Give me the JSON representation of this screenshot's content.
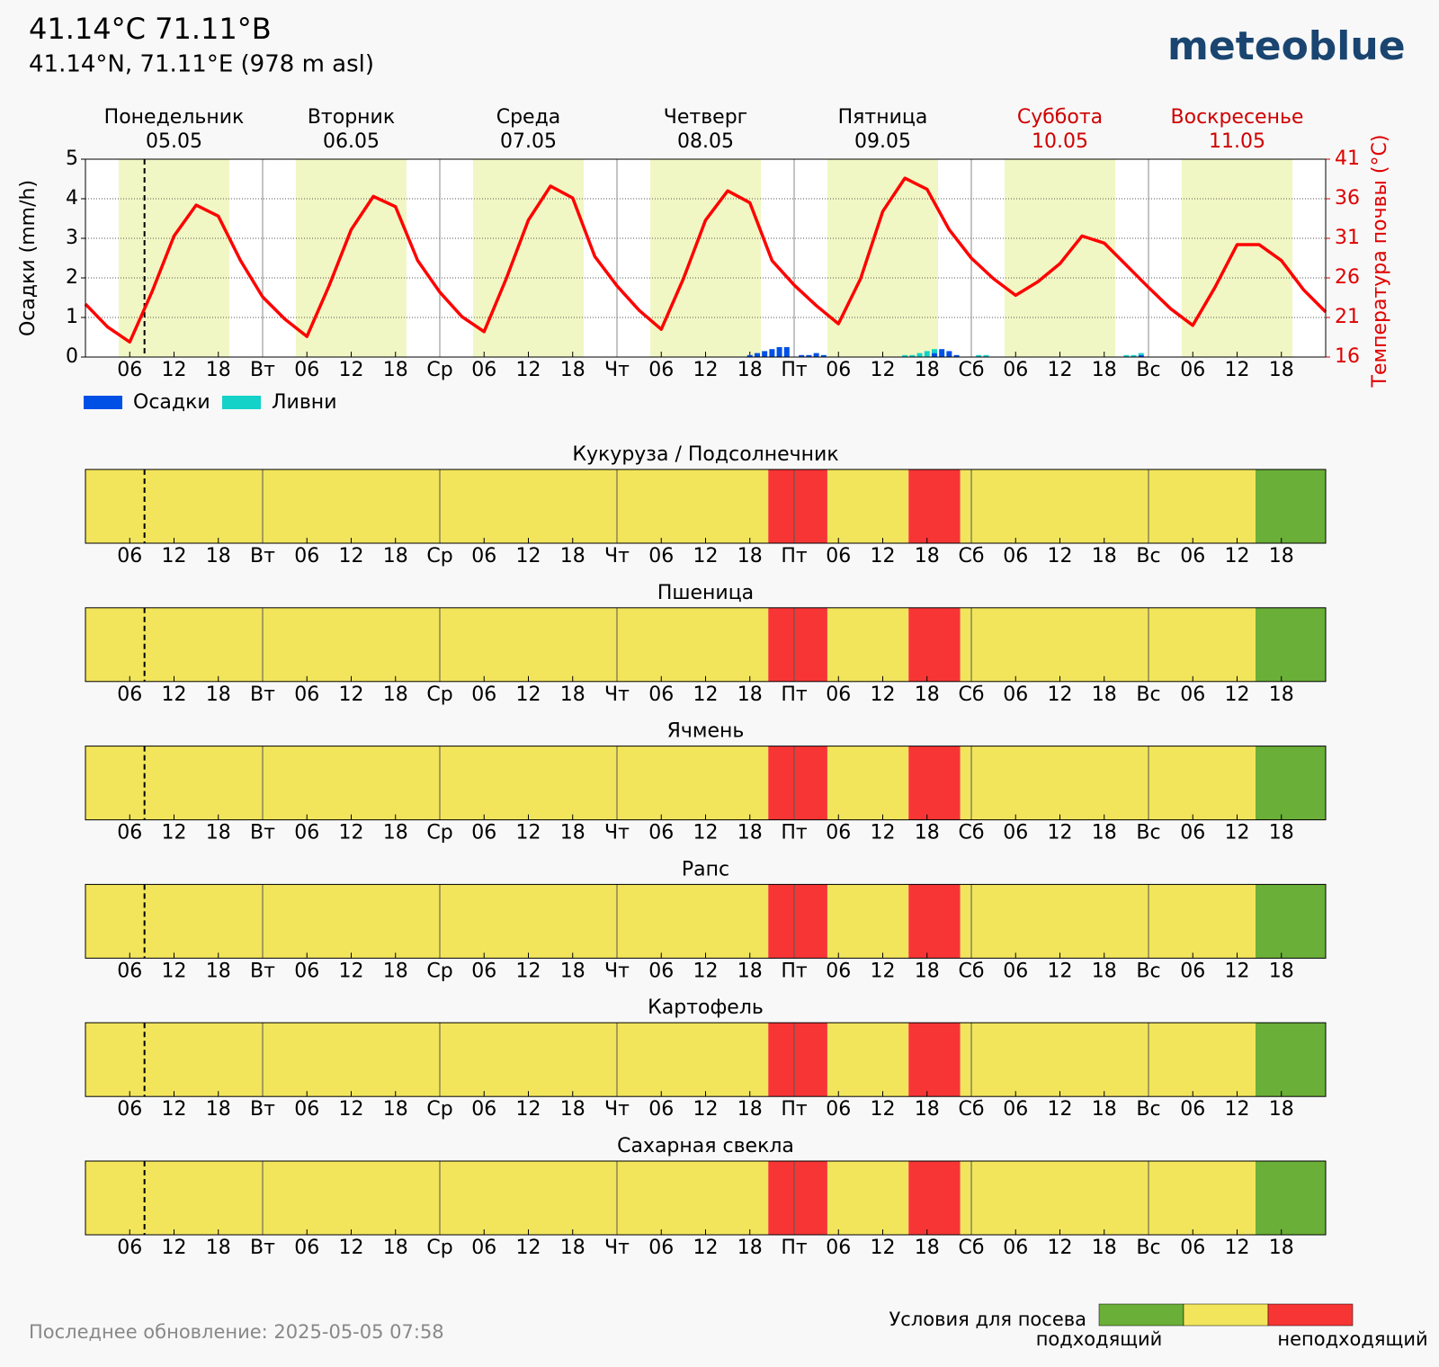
{
  "header": {
    "title": "41.14°C 71.11°В",
    "subtitle": "41.14°N, 71.11°E (978 m asl)",
    "logo": "meteoblue"
  },
  "chart_data": {
    "type": "bar",
    "days": [
      {
        "name": "Понедельник",
        "date": "05.05",
        "weekend": false
      },
      {
        "name": "Вторник",
        "date": "06.05",
        "weekend": false
      },
      {
        "name": "Среда",
        "date": "07.05",
        "weekend": false
      },
      {
        "name": "Четверг",
        "date": "08.05",
        "weekend": false
      },
      {
        "name": "Пятница",
        "date": "09.05",
        "weekend": false
      },
      {
        "name": "Суббота",
        "date": "10.05",
        "weekend": true
      },
      {
        "name": "Воскресенье",
        "date": "11.05",
        "weekend": true
      }
    ],
    "xlim": [
      0,
      168
    ],
    "xticks": [
      {
        "value": 6,
        "label": "06"
      },
      12,
      18,
      {
        "value": 24,
        "label": "Вт"
      },
      {
        "value": 30,
        "label": "06"
      },
      {
        "value": 36,
        "label": "12"
      },
      {
        "value": 42,
        "label": "18"
      },
      {
        "value": 48,
        "label": "Ср"
      },
      {
        "value": 54,
        "label": "06"
      },
      {
        "value": 60,
        "label": "12"
      },
      {
        "value": 66,
        "label": "18"
      },
      {
        "value": 72,
        "label": "Чт"
      },
      {
        "value": 78,
        "label": "06"
      },
      {
        "value": 84,
        "label": "12"
      },
      {
        "value": 90,
        "label": "18"
      },
      {
        "value": 96,
        "label": "Пт"
      },
      {
        "value": 102,
        "label": "06"
      },
      {
        "value": 108,
        "label": "12"
      },
      {
        "value": 114,
        "label": "18"
      },
      {
        "value": 120,
        "label": "Сб"
      },
      {
        "value": 126,
        "label": "06"
      },
      {
        "value": 132,
        "label": "12"
      },
      {
        "value": 138,
        "label": "18"
      },
      {
        "value": 144,
        "label": "Вс"
      },
      {
        "value": 150,
        "label": "06"
      },
      {
        "value": 156,
        "label": "12"
      },
      {
        "value": 162,
        "label": "18"
      }
    ],
    "daylight": [
      [
        4.5,
        19.5
      ],
      [
        28.5,
        43.5
      ],
      [
        52.5,
        67.5
      ],
      [
        76.5,
        91.5
      ],
      [
        100.5,
        115.5
      ],
      [
        124.5,
        139.5
      ],
      [
        148.5,
        163.5
      ]
    ],
    "now": 8,
    "ylabel": "Осадки (mm/h)",
    "ylim": [
      0,
      5
    ],
    "yticks": [
      0,
      1,
      2,
      3,
      4,
      5
    ],
    "grid": true,
    "y2label": "Температура почвы (°C)",
    "y2lim": [
      16,
      41
    ],
    "y2ticks": [
      16,
      21,
      26,
      31,
      36,
      41
    ],
    "x": [
      90,
      91,
      92,
      93,
      94,
      95,
      97,
      98,
      99,
      100,
      111,
      112,
      113,
      114,
      115,
      116,
      117,
      118,
      121,
      122,
      141,
      142,
      143
    ],
    "series": [
      {
        "name": "Осадки",
        "color": "#0050e6",
        "values": [
          0.05,
          0.1,
          0.15,
          0.2,
          0.25,
          0.25,
          0.05,
          0.05,
          0.1,
          0.05,
          0,
          0,
          0,
          0,
          0.1,
          0.2,
          0.15,
          0.05,
          0,
          0,
          0,
          0,
          0.05
        ]
      },
      {
        "name": "Ливни",
        "color": "#14d2c8",
        "values": [
          0,
          0,
          0,
          0,
          0,
          0,
          0,
          0,
          0,
          0,
          0.05,
          0.05,
          0.1,
          0.15,
          0.1,
          0,
          0,
          0,
          0.05,
          0.05,
          0.05,
          0.05,
          0.05
        ]
      }
    ],
    "temperature": {
      "axis": "y2",
      "color": "#ff0000",
      "x": [
        0,
        3,
        6,
        9,
        12,
        15,
        18,
        21,
        24,
        27,
        30,
        33,
        36,
        39,
        42,
        45,
        48,
        51,
        54,
        57,
        60,
        63,
        66,
        69,
        72,
        75,
        78,
        81,
        84,
        87,
        90,
        93,
        96,
        99,
        102,
        105,
        108,
        111,
        114,
        117,
        120,
        123,
        126,
        129,
        132,
        135,
        138,
        141,
        144,
        147,
        150,
        153,
        156,
        159,
        162,
        165,
        168
      ],
      "values": [
        22.7,
        19.8,
        17.9,
        24.2,
        31.3,
        35.2,
        33.8,
        28.2,
        23.6,
        20.8,
        18.6,
        25,
        32.1,
        36.3,
        35,
        28.2,
        24.2,
        21.1,
        19.2,
        25.9,
        33.3,
        37.6,
        36.1,
        28.7,
        25,
        21.9,
        19.5,
        25.9,
        33.3,
        37,
        35.5,
        28.2,
        25.1,
        22.5,
        20.2,
        25.9,
        34.4,
        38.6,
        37.2,
        32.1,
        28.5,
        25.9,
        23.8,
        25.5,
        27.8,
        31.3,
        30.4,
        27.6,
        24.8,
        22.1,
        20,
        24.8,
        30.2,
        30.2,
        28.2,
        24.5,
        21.7
      ]
    },
    "crops": [
      {
        "name": "Кукуруза / Подсолнечник",
        "bounds": [
          0,
          92.5,
          100.5,
          111.5,
          118.5,
          158.5,
          168
        ],
        "levels": [
          1,
          2,
          1,
          2,
          1,
          0
        ]
      },
      {
        "name": "Пшеница",
        "bounds": [
          0,
          92.5,
          100.5,
          111.5,
          118.5,
          158.5,
          168
        ],
        "levels": [
          1,
          2,
          1,
          2,
          1,
          0
        ]
      },
      {
        "name": "Ячмень",
        "bounds": [
          0,
          92.5,
          100.5,
          111.5,
          118.5,
          158.5,
          168
        ],
        "levels": [
          1,
          2,
          1,
          2,
          1,
          0
        ]
      },
      {
        "name": "Рапс",
        "bounds": [
          0,
          92.5,
          100.5,
          111.5,
          118.5,
          158.5,
          168
        ],
        "levels": [
          1,
          2,
          1,
          2,
          1,
          0
        ]
      },
      {
        "name": "Картофель",
        "bounds": [
          0,
          92.5,
          100.5,
          111.5,
          118.5,
          158.5,
          168
        ],
        "levels": [
          1,
          2,
          1,
          2,
          1,
          0
        ]
      },
      {
        "name": "Сахарная свекла",
        "bounds": [
          0,
          92.5,
          100.5,
          111.5,
          118.5,
          158.5,
          168
        ],
        "levels": [
          1,
          2,
          1,
          2,
          1,
          0
        ]
      }
    ],
    "condition_legend": {
      "title": "Условия для посева",
      "colors": [
        "#6aaf37",
        "#f2e55c",
        "#f73535"
      ],
      "low_label": "подходящий",
      "high_label": "неподходящий"
    }
  },
  "footer": {
    "updated": "Последнее обновление: 2025-05-05 07:58"
  }
}
